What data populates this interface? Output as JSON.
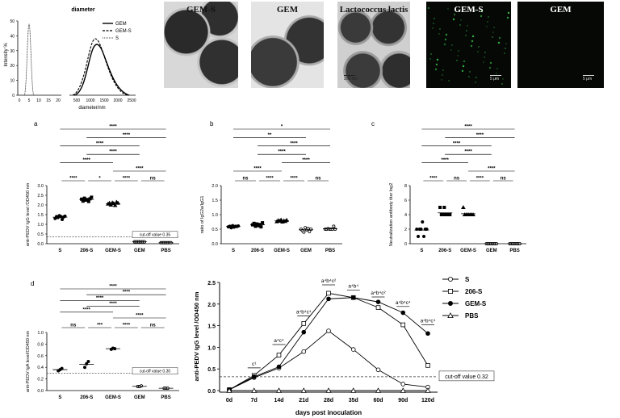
{
  "top": {
    "dls": {
      "title": "diameter",
      "ylabel": "Intensity %",
      "xlabel": "diameter/nm",
      "legend": [
        "GEM",
        "GEM-S",
        "S"
      ],
      "left_ticks": [
        "0",
        "5",
        "10",
        "15",
        "20"
      ],
      "right_ticks": [
        "500",
        "1000",
        "1500",
        "2000",
        "2500"
      ],
      "y_ticks": [
        "0",
        "10",
        "20",
        "30",
        "40",
        "50"
      ]
    },
    "micrographs": [
      {
        "title": "GEM-S",
        "kind": "tem"
      },
      {
        "title": "GEM",
        "kind": "tem gem"
      },
      {
        "title": "Lactococcus lactis",
        "kind": "tem ll",
        "scale": "200 nm"
      },
      {
        "title": "GEM-S",
        "kind": "fluo",
        "scale": "5 μm"
      },
      {
        "title": "GEM",
        "kind": "fluo",
        "scale": "5 μm"
      }
    ]
  },
  "chart_data": [
    {
      "panel": "a",
      "type": "scatter",
      "categories": [
        "S",
        "206-S",
        "GEM-S",
        "GEM",
        "PBS"
      ],
      "ylabel": "anti-PEDV IgG level /OD450 nm",
      "ylim": [
        0,
        3
      ],
      "yticks": [
        "0.0",
        "0.5",
        "1.0",
        "1.5",
        "2.0",
        "2.5",
        "3.0"
      ],
      "points": [
        [
          1.3,
          1.4,
          1.35,
          1.45,
          1.4,
          1.25,
          1.38,
          1.42
        ],
        [
          2.3,
          2.2,
          2.35,
          2.25,
          2.28,
          2.18,
          2.32,
          2.4
        ],
        [
          2.05,
          2.1,
          2.0,
          2.12,
          2.08,
          1.98,
          2.15,
          2.1
        ],
        [
          0.1,
          0.1,
          0.1,
          0.1,
          0.1,
          0.1,
          0.1,
          0.1
        ],
        [
          0.05,
          0.05,
          0.05,
          0.05,
          0.05,
          0.05,
          0.05,
          0.05
        ]
      ],
      "markers": [
        "circle-filled",
        "square-filled",
        "triangle-filled",
        "circle-open",
        "circle-open"
      ],
      "cutoff": 0.35,
      "cutoff_label": "cut-off value 0.35",
      "brackets": [
        {
          "from": 0,
          "to": 4,
          "label": "****"
        },
        {
          "from": 1,
          "to": 4,
          "label": "****"
        },
        {
          "from": 0,
          "to": 3,
          "label": "****"
        },
        {
          "from": 1,
          "to": 3,
          "label": "****"
        },
        {
          "from": 0,
          "to": 2,
          "label": "****"
        },
        {
          "from": 2,
          "to": 4,
          "label": "****"
        },
        {
          "from": 0,
          "to": 1,
          "label": "****"
        },
        {
          "from": 1,
          "to": 2,
          "label": "*"
        },
        {
          "from": 2,
          "to": 3,
          "label": "****"
        },
        {
          "from": 3,
          "to": 4,
          "label": "ns"
        }
      ]
    },
    {
      "panel": "b",
      "type": "scatter",
      "categories": [
        "S",
        "206-S",
        "GEM-S",
        "GEM",
        "PBS"
      ],
      "ylabel": "ratio of IgG2a/IgG1",
      "ylim": [
        0,
        2
      ],
      "yticks": [
        "0.0",
        "0.5",
        "1.0",
        "1.5",
        "2.0"
      ],
      "points": [
        [
          0.58,
          0.6,
          0.55,
          0.62,
          0.57,
          0.6,
          0.59,
          0.61
        ],
        [
          0.65,
          0.7,
          0.6,
          0.68,
          0.62,
          0.66,
          0.58,
          0.72
        ],
        [
          0.76,
          0.8,
          0.78,
          0.82,
          0.75,
          0.79,
          0.77,
          0.81
        ],
        [
          0.5,
          0.45,
          0.4,
          0.55,
          0.48,
          0.52,
          0.42,
          0.5
        ],
        [
          0.5,
          0.5,
          0.52,
          0.5,
          0.5,
          0.5,
          0.6,
          0.5
        ]
      ],
      "markers": [
        "circle-filled",
        "square-filled",
        "triangle-filled",
        "circle-open",
        "circle-open"
      ],
      "brackets": [
        {
          "from": 0,
          "to": 4,
          "label": "*"
        },
        {
          "from": 0,
          "to": 3,
          "label": "**"
        },
        {
          "from": 1,
          "to": 4,
          "label": "****"
        },
        {
          "from": 1,
          "to": 3,
          "label": "****"
        },
        {
          "from": 2,
          "to": 4,
          "label": "****"
        },
        {
          "from": 0,
          "to": 2,
          "label": "****"
        },
        {
          "from": 0,
          "to": 1,
          "label": "ns"
        },
        {
          "from": 1,
          "to": 2,
          "label": "****"
        },
        {
          "from": 2,
          "to": 3,
          "label": "****"
        },
        {
          "from": 3,
          "to": 4,
          "label": "ns"
        }
      ]
    },
    {
      "panel": "c",
      "type": "scatter",
      "categories": [
        "S",
        "206-S",
        "GEM-S",
        "GEM",
        "PBS"
      ],
      "ylabel": "Neutralization antibody titer log2",
      "ylim": [
        0,
        8
      ],
      "yticks": [
        "0",
        "2",
        "4",
        "6",
        "8"
      ],
      "points": [
        [
          2,
          1,
          2,
          2,
          3,
          1,
          2,
          2
        ],
        [
          5,
          4,
          4,
          5,
          4,
          4,
          4,
          4
        ],
        [
          5,
          4,
          4,
          4,
          4,
          4,
          4,
          4
        ],
        [
          0,
          0,
          0,
          0,
          0,
          0,
          0,
          0
        ],
        [
          0,
          0,
          0,
          0,
          0,
          0,
          0,
          0
        ]
      ],
      "markers": [
        "circle-filled",
        "square-filled",
        "triangle-filled",
        "circle-open",
        "circle-open"
      ],
      "brackets": [
        {
          "from": 0,
          "to": 4,
          "label": "****"
        },
        {
          "from": 1,
          "to": 4,
          "label": "****"
        },
        {
          "from": 0,
          "to": 3,
          "label": "****"
        },
        {
          "from": 1,
          "to": 3,
          "label": "****"
        },
        {
          "from": 0,
          "to": 2,
          "label": "****"
        },
        {
          "from": 2,
          "to": 4,
          "label": "****"
        },
        {
          "from": 0,
          "to": 1,
          "label": "****"
        },
        {
          "from": 1,
          "to": 2,
          "label": "ns"
        },
        {
          "from": 2,
          "to": 3,
          "label": "****"
        },
        {
          "from": 3,
          "to": 4,
          "label": "ns"
        }
      ]
    },
    {
      "panel": "d",
      "type": "scatter",
      "categories": [
        "S",
        "206-S",
        "GEM-S",
        "GEM",
        "PBS"
      ],
      "ylabel": "anti-PEDV IgA level/OD450 nm",
      "ylim": [
        0,
        1.0
      ],
      "yticks": [
        "0.0",
        "0.2",
        "0.4",
        "0.6",
        "0.8",
        "1.0"
      ],
      "points": [
        [
          0.34,
          0.36,
          0.38
        ],
        [
          0.4,
          0.46,
          0.5
        ],
        [
          0.71,
          0.73,
          0.72
        ],
        [
          0.07,
          0.07,
          0.08
        ],
        [
          0.04,
          0.04,
          0.04
        ]
      ],
      "markers": [
        "circle-filled",
        "circle-filled",
        "circle-filled",
        "circle-open",
        "circle-open"
      ],
      "cutoff": 0.3,
      "cutoff_label": "cut-off value 0.30",
      "brackets": [
        {
          "from": 0,
          "to": 4,
          "label": "****"
        },
        {
          "from": 1,
          "to": 4,
          "label": "****"
        },
        {
          "from": 0,
          "to": 3,
          "label": "****"
        },
        {
          "from": 1,
          "to": 3,
          "label": "****"
        },
        {
          "from": 0,
          "to": 2,
          "label": "****"
        },
        {
          "from": 2,
          "to": 4,
          "label": "****"
        },
        {
          "from": 0,
          "to": 1,
          "label": "ns"
        },
        {
          "from": 1,
          "to": 2,
          "label": "***"
        },
        {
          "from": 2,
          "to": 3,
          "label": "****"
        },
        {
          "from": 3,
          "to": 4,
          "label": "ns"
        }
      ]
    },
    {
      "panel": "time-course",
      "type": "line",
      "x": [
        "0d",
        "7d",
        "14d",
        "21d",
        "28d",
        "35d",
        "60d",
        "90d",
        "120d"
      ],
      "xlabel": "days post inoculation",
      "ylabel": "anti-PEDV IgG level /OD450 nm",
      "ylim": [
        0,
        2.5
      ],
      "yticks": [
        "0.0",
        "0.5",
        "1.0",
        "1.5",
        "2.0",
        "2.5"
      ],
      "series": [
        {
          "name": "S",
          "marker": "circle-open",
          "values": [
            0.02,
            0.3,
            0.52,
            0.9,
            1.38,
            0.95,
            0.48,
            0.15,
            0.08
          ]
        },
        {
          "name": "206-S",
          "marker": "square-open",
          "values": [
            0.02,
            0.35,
            0.82,
            1.55,
            2.25,
            2.15,
            1.92,
            1.52,
            0.58
          ]
        },
        {
          "name": "GEM-S",
          "marker": "circle-filled",
          "values": [
            0.02,
            0.32,
            0.55,
            1.35,
            2.12,
            2.15,
            2.05,
            1.8,
            1.32
          ]
        },
        {
          "name": "PBS",
          "marker": "triangle-open",
          "values": [
            0.0,
            0.0,
            0.0,
            0.0,
            0.0,
            0.0,
            0.0,
            0.0,
            0.0
          ]
        }
      ],
      "cutoff": 0.32,
      "cutoff_label": "cut-off value 0.32",
      "annotations": [
        {
          "x_index": 1,
          "label": "c¹",
          "y": 0.58
        },
        {
          "x_index": 2,
          "label": "a⁴c⁴",
          "y": 1.12
        },
        {
          "x_index": 3,
          "label": "a⁴b⁴c⁴",
          "y": 1.78
        },
        {
          "x_index": 4,
          "label": "a⁴b⁴c²",
          "y": 2.5
        },
        {
          "x_index": 5,
          "label": "a⁴b⁴",
          "y": 2.38
        },
        {
          "x_index": 6,
          "label": "a⁴b⁴c²",
          "y": 2.22
        },
        {
          "x_index": 7,
          "label": "a⁴b⁴c⁴",
          "y": 2.0
        },
        {
          "x_index": 8,
          "label": "a⁴b⁴c⁴",
          "y": 1.58
        }
      ]
    }
  ]
}
